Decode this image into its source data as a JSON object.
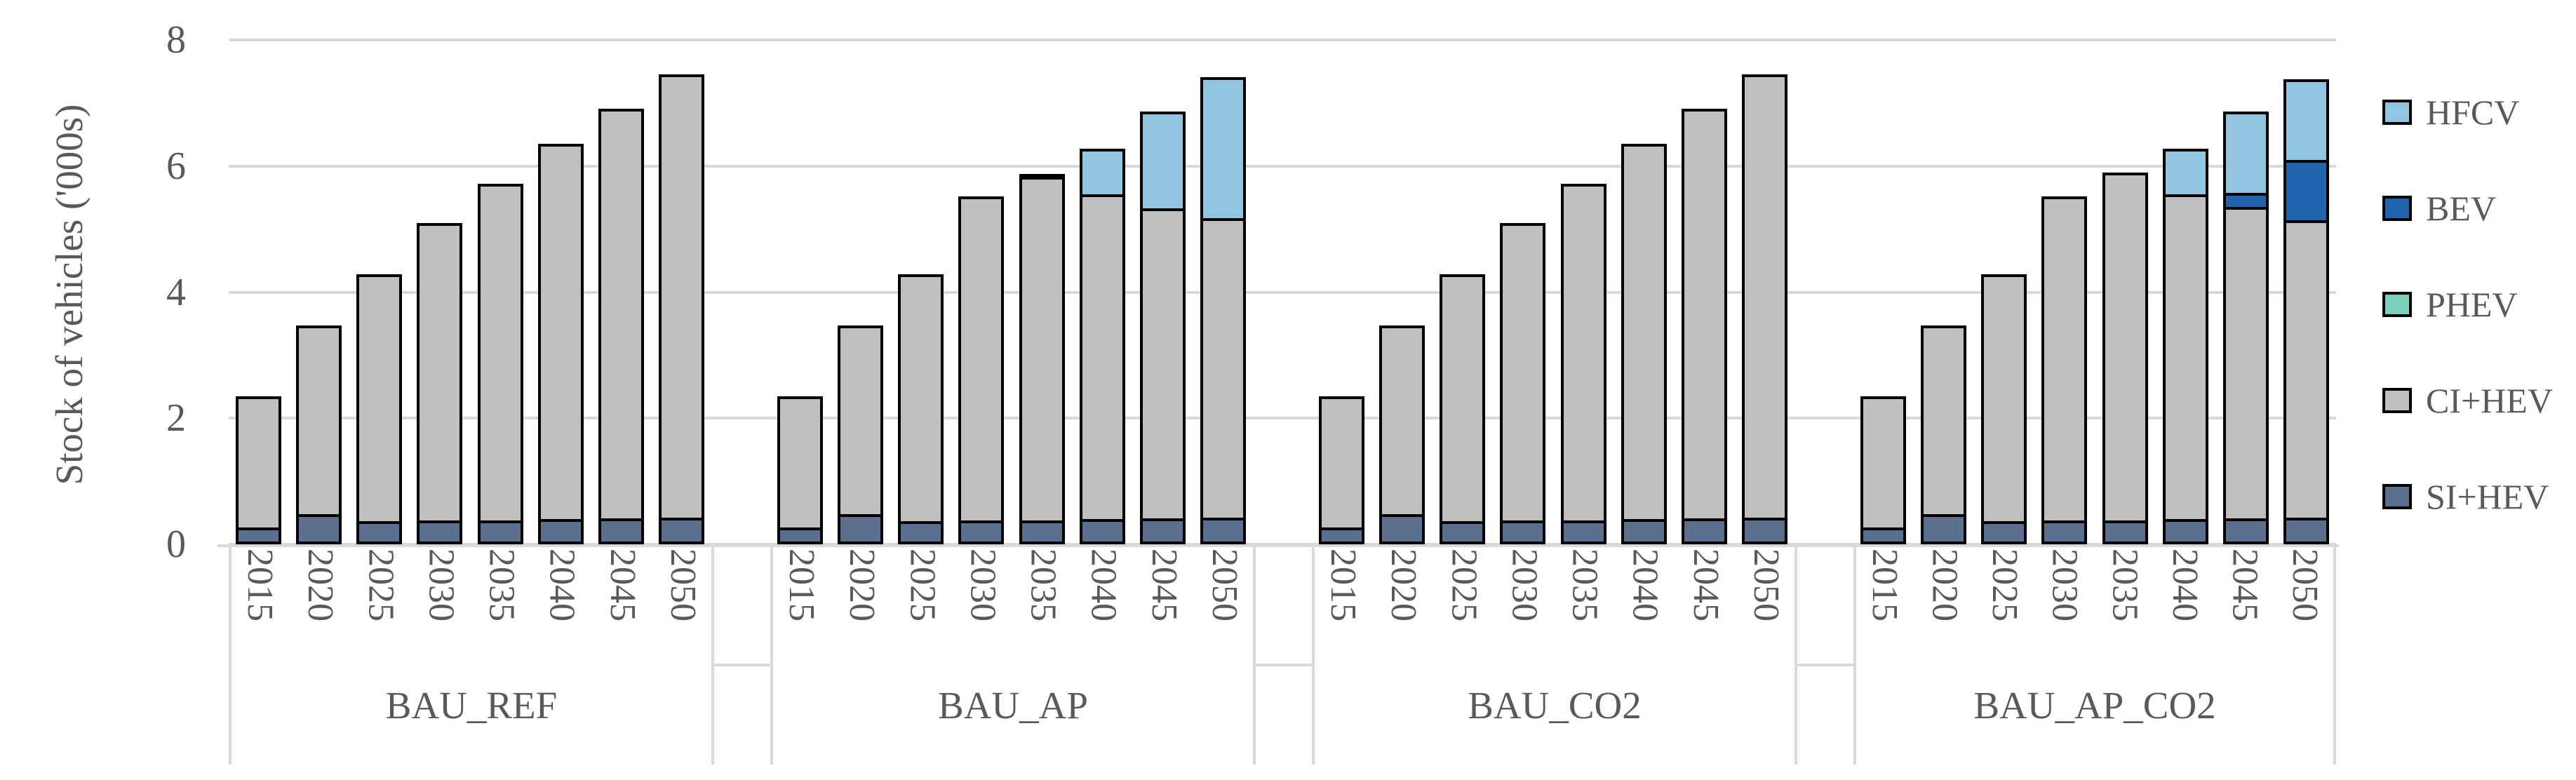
{
  "chart_data": {
    "type": "bar",
    "stacked": true,
    "ylabel": "Stock of vehicles ('000s)",
    "ylim": [
      0,
      8
    ],
    "yticks": [
      0,
      2,
      4,
      6,
      8
    ],
    "grid": true,
    "legend_position": "right",
    "categories_years": [
      "2015",
      "2020",
      "2025",
      "2030",
      "2035",
      "2040",
      "2045",
      "2050"
    ],
    "stack_order_bottom_to_top": [
      "SI+HEV",
      "CI+HEV",
      "PHEV",
      "BEV",
      "HFCV"
    ],
    "series_colors": {
      "HFCV": "#92C5E1",
      "BEV": "#2164AE",
      "PHEV": "#7CD1BD",
      "CI+HEV": "#BFBFBF",
      "SI+HEV": "#5B7090"
    },
    "legend_order": [
      "HFCV",
      "BEV",
      "PHEV",
      "CI+HEV",
      "SI+HEV"
    ],
    "groups": [
      {
        "label": "BAU_REF",
        "series": {
          "SI+HEV": [
            0.27,
            0.48,
            0.37,
            0.38,
            0.38,
            0.4,
            0.41,
            0.42
          ],
          "CI+HEV": [
            2.13,
            3.04,
            3.96,
            4.76,
            5.38,
            6.0,
            6.54,
            7.08
          ],
          "PHEV": [
            0,
            0,
            0,
            0,
            0,
            0,
            0,
            0
          ],
          "BEV": [
            0,
            0,
            0,
            0,
            0,
            0,
            0,
            0
          ],
          "HFCV": [
            0,
            0,
            0,
            0,
            0,
            0,
            0,
            0
          ]
        }
      },
      {
        "label": "BAU_AP",
        "series": {
          "SI+HEV": [
            0.27,
            0.48,
            0.37,
            0.38,
            0.38,
            0.4,
            0.41,
            0.42
          ],
          "CI+HEV": [
            2.13,
            3.04,
            3.96,
            5.18,
            5.5,
            5.2,
            4.96,
            4.8
          ],
          "PHEV": [
            0,
            0,
            0,
            0,
            0,
            0,
            0,
            0
          ],
          "BEV": [
            0,
            0,
            0,
            0,
            0,
            0,
            0,
            0
          ],
          "HFCV": [
            0,
            0,
            0,
            0,
            0.04,
            0.77,
            1.58,
            2.28
          ]
        }
      },
      {
        "label": "BAU_CO2",
        "series": {
          "SI+HEV": [
            0.27,
            0.48,
            0.37,
            0.38,
            0.38,
            0.4,
            0.41,
            0.42
          ],
          "CI+HEV": [
            2.13,
            3.04,
            3.96,
            4.76,
            5.38,
            6.0,
            6.54,
            7.08
          ],
          "PHEV": [
            0,
            0,
            0,
            0,
            0,
            0,
            0,
            0
          ],
          "BEV": [
            0,
            0,
            0,
            0,
            0,
            0,
            0,
            0
          ],
          "HFCV": [
            0,
            0,
            0,
            0,
            0,
            0,
            0,
            0
          ]
        }
      },
      {
        "label": "BAU_AP_CO2",
        "series": {
          "SI+HEV": [
            0.27,
            0.48,
            0.37,
            0.38,
            0.38,
            0.4,
            0.41,
            0.42
          ],
          "CI+HEV": [
            2.13,
            3.04,
            3.96,
            5.19,
            5.56,
            5.2,
            4.98,
            4.76
          ],
          "PHEV": [
            0,
            0,
            0,
            0,
            0,
            0,
            0,
            0
          ],
          "BEV": [
            0,
            0,
            0,
            0,
            0,
            0,
            0.27,
            1.0
          ],
          "HFCV": [
            0,
            0,
            0,
            0,
            0,
            0.77,
            1.34,
            1.32
          ]
        }
      }
    ]
  },
  "colors": {
    "text": "#595959",
    "gridline": "#D9D9D9",
    "bar_border": "#000000",
    "background": "#FFFFFF"
  }
}
